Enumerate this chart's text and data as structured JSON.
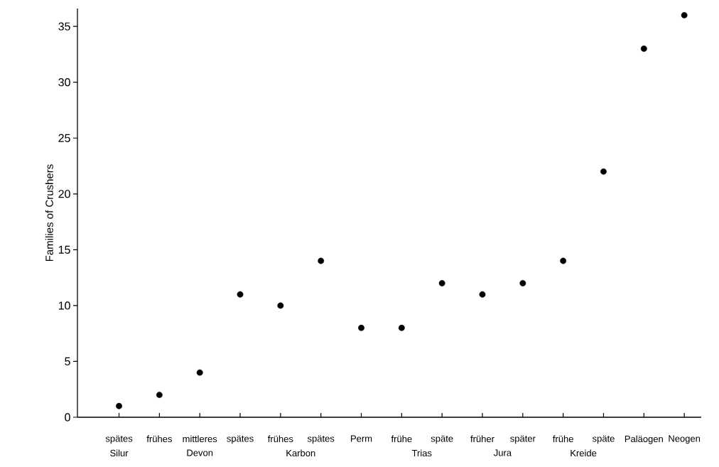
{
  "chart_data": {
    "type": "scatter",
    "ylabel": "Families of Crushers",
    "categories": [
      "spätes",
      "frühes",
      "mittleres",
      "spätes",
      "frühes",
      "spätes",
      "Perm",
      "frühe",
      "späte",
      "früher",
      "später",
      "frühe",
      "späte",
      "Paläogen",
      "Neogen"
    ],
    "series": [
      {
        "color": "#000000",
        "values": [
          1,
          2,
          4,
          11,
          10,
          14,
          8,
          8,
          12,
          11,
          12,
          14,
          22,
          33,
          36
        ]
      }
    ],
    "ylim": [
      0,
      36.6
    ],
    "yticks": [
      0,
      5,
      10,
      15,
      20,
      25,
      30,
      35
    ],
    "grid": false,
    "annotations": [
      "Silur",
      "Devon",
      "Karbon",
      "Trias",
      "Jura",
      "Kreide"
    ]
  }
}
